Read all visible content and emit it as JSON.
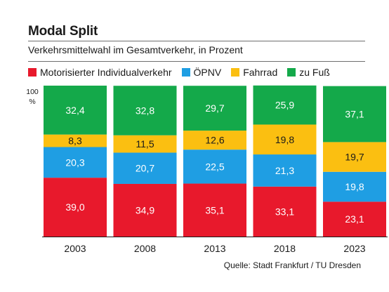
{
  "header": {
    "title": "Modal Split",
    "subtitle": "Verkehrsmittelwahl im Gesamtverkehr, in Prozent"
  },
  "axis": {
    "y_top_label": "100",
    "y_unit_label": "%"
  },
  "colors": {
    "motorisiert": "#e8192c",
    "oepnv": "#1f9ee3",
    "fahrrad": "#fbbf11",
    "zu_fuss": "#14a94a"
  },
  "source": "Quelle: Stadt Frankfurt / TU Dresden",
  "chart_data": {
    "type": "bar",
    "stacked": true,
    "title": "Modal Split",
    "subtitle": "Verkehrsmittelwahl im Gesamtverkehr, in Prozent",
    "xlabel": "",
    "ylabel": "%",
    "ylim": [
      0,
      100
    ],
    "legend_position": "top",
    "grid": false,
    "categories": [
      "2003",
      "2008",
      "2013",
      "2018",
      "2023"
    ],
    "series": [
      {
        "name": "Motorisierter Individualverkehr",
        "color": "#e8192c",
        "values": [
          39.0,
          34.9,
          35.1,
          33.1,
          23.1
        ],
        "labels": [
          "39,0",
          "34,9",
          "35,1",
          "33,1",
          "23,1"
        ]
      },
      {
        "name": "ÖPNV",
        "color": "#1f9ee3",
        "values": [
          20.3,
          20.7,
          22.5,
          21.3,
          19.8
        ],
        "labels": [
          "20,3",
          "20,7",
          "22,5",
          "21,3",
          "19,8"
        ]
      },
      {
        "name": "Fahrrad",
        "color": "#fbbf11",
        "values": [
          8.3,
          11.5,
          12.6,
          19.8,
          19.7
        ],
        "labels": [
          "8,3",
          "11,5",
          "12,6",
          "19,8",
          "19,7"
        ]
      },
      {
        "name": "zu Fuß",
        "color": "#14a94a",
        "values": [
          32.4,
          32.8,
          29.7,
          25.9,
          37.1
        ],
        "labels": [
          "32,4",
          "32,8",
          "29,7",
          "25,9",
          "37,1"
        ]
      }
    ]
  }
}
